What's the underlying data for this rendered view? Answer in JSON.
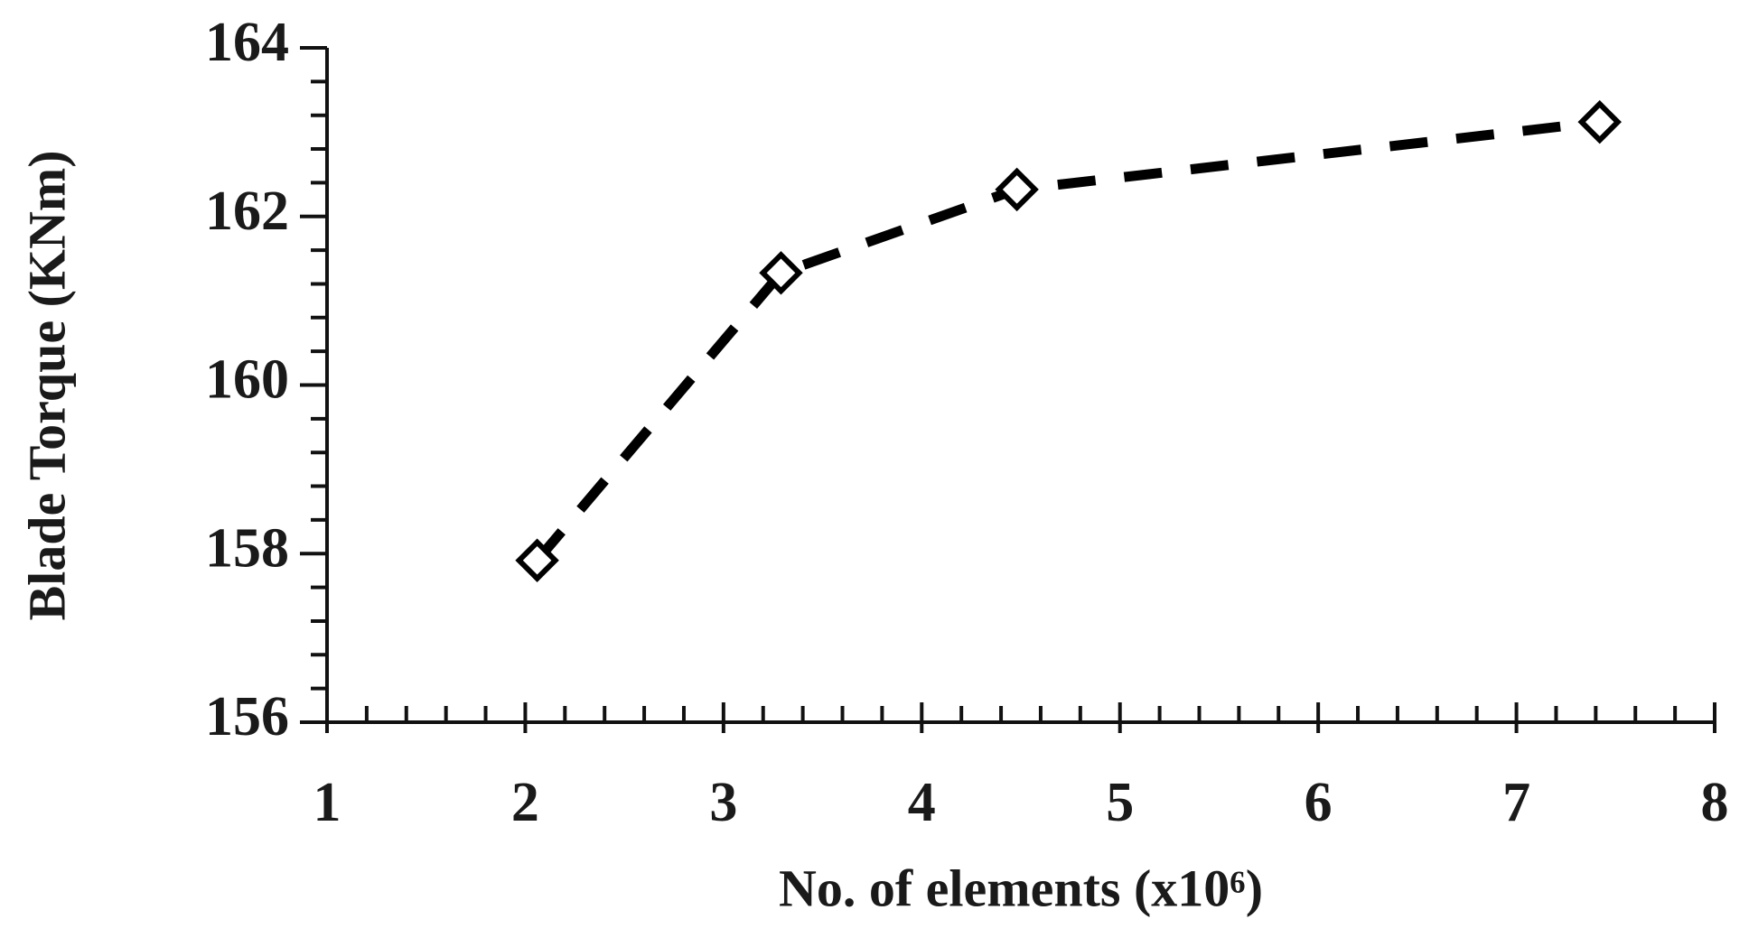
{
  "chart_data": {
    "type": "line",
    "x_label": "No. of elements (x10⁶)",
    "y_label": "Blade Torque (KNm)",
    "x": [
      2.06,
      3.29,
      4.48,
      7.42
    ],
    "series": [
      {
        "color": "#000000",
        "values": [
          157.92,
          161.33,
          162.32,
          163.12
        ]
      }
    ],
    "xlim": [
      1,
      8
    ],
    "xticks": [
      1,
      2,
      3,
      4,
      5,
      6,
      7,
      8
    ],
    "ylim": [
      156,
      164
    ],
    "yticks": [
      156,
      158,
      160,
      162,
      164
    ],
    "grid": false
  }
}
